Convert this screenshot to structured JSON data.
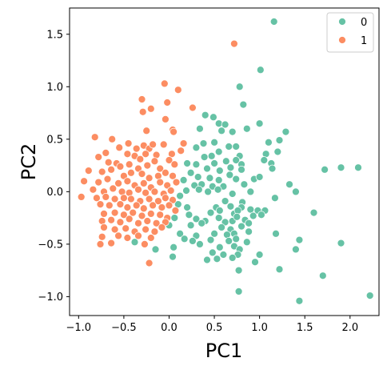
{
  "colors": {
    "series_0": "#66c2a5",
    "series_1": "#fc8d62"
  },
  "chart_data": {
    "type": "scatter",
    "title": "",
    "xlabel": "PC1",
    "ylabel": "PC2",
    "xlim": [
      -1.1,
      2.32
    ],
    "ylim": [
      -1.18,
      1.75
    ],
    "xticks": [
      -1.0,
      -0.5,
      0.0,
      0.5,
      1.0,
      1.5,
      2.0
    ],
    "yticks": [
      -1.0,
      -0.5,
      0.0,
      0.5,
      1.0,
      1.5
    ],
    "xtick_labels": [
      "−1.0",
      "−0.5",
      "0.0",
      "0.5",
      "1.0",
      "1.5",
      "2.0"
    ],
    "ytick_labels": [
      "−1.0",
      "−0.5",
      "0.0",
      "0.5",
      "1.0",
      "1.5"
    ],
    "grid": false,
    "legend": {
      "position": "top-right"
    },
    "series": [
      {
        "name": "0",
        "points": [
          [
            1.16,
            1.62
          ],
          [
            1.01,
            1.16
          ],
          [
            0.78,
            1.0
          ],
          [
            0.82,
            0.83
          ],
          [
            0.4,
            0.73
          ],
          [
            0.49,
            0.71
          ],
          [
            0.55,
            0.65
          ],
          [
            0.62,
            0.64
          ],
          [
            0.58,
            0.58
          ],
          [
            0.34,
            0.6
          ],
          [
            0.7,
            0.57
          ],
          [
            0.86,
            0.6
          ],
          [
            1.0,
            0.65
          ],
          [
            1.29,
            0.57
          ],
          [
            1.1,
            0.47
          ],
          [
            1.2,
            0.38
          ],
          [
            1.22,
            0.49
          ],
          [
            0.5,
            0.47
          ],
          [
            0.38,
            0.46
          ],
          [
            0.74,
            0.43
          ],
          [
            0.3,
            0.42
          ],
          [
            0.55,
            0.38
          ],
          [
            0.66,
            0.43
          ],
          [
            0.47,
            0.34
          ],
          [
            0.39,
            0.33
          ],
          [
            0.78,
            0.34
          ],
          [
            0.74,
            0.3
          ],
          [
            0.63,
            0.29
          ],
          [
            0.2,
            0.27
          ],
          [
            0.3,
            0.26
          ],
          [
            0.5,
            0.27
          ],
          [
            0.8,
            0.26
          ],
          [
            1.07,
            0.36
          ],
          [
            1.05,
            0.3
          ],
          [
            1.13,
            0.27
          ],
          [
            1.14,
            0.22
          ],
          [
            1.9,
            0.23
          ],
          [
            2.09,
            0.23
          ],
          [
            1.72,
            0.21
          ],
          [
            0.42,
            0.22
          ],
          [
            0.56,
            0.2
          ],
          [
            0.68,
            0.23
          ],
          [
            0.8,
            0.21
          ],
          [
            0.67,
            0.16
          ],
          [
            0.24,
            0.18
          ],
          [
            0.32,
            0.14
          ],
          [
            0.45,
            0.13
          ],
          [
            0.36,
            0.07
          ],
          [
            0.55,
            0.11
          ],
          [
            0.74,
            0.12
          ],
          [
            0.94,
            0.12
          ],
          [
            1.0,
            0.14
          ],
          [
            0.16,
            0.11
          ],
          [
            0.28,
            0.06
          ],
          [
            0.48,
            0.05
          ],
          [
            0.6,
            0.05
          ],
          [
            0.83,
            0.07
          ],
          [
            1.33,
            0.07
          ],
          [
            0.19,
            0.01
          ],
          [
            0.33,
            0.02
          ],
          [
            0.43,
            0.0
          ],
          [
            0.54,
            0.02
          ],
          [
            0.7,
            -0.02
          ],
          [
            0.9,
            0.0
          ],
          [
            1.4,
            0.0
          ],
          [
            0.12,
            -0.04
          ],
          [
            0.62,
            -0.09
          ],
          [
            0.81,
            -0.1
          ],
          [
            1.17,
            -0.06
          ],
          [
            0.1,
            -0.12
          ],
          [
            0.2,
            -0.15
          ],
          [
            0.52,
            -0.15
          ],
          [
            0.68,
            -0.14
          ],
          [
            0.8,
            -0.15
          ],
          [
            0.9,
            -0.17
          ],
          [
            0.98,
            -0.18
          ],
          [
            1.06,
            -0.18
          ],
          [
            0.22,
            -0.22
          ],
          [
            0.46,
            -0.2
          ],
          [
            0.56,
            -0.18
          ],
          [
            0.72,
            -0.21
          ],
          [
            0.76,
            -0.18
          ],
          [
            1.02,
            -0.22
          ],
          [
            1.6,
            -0.2
          ],
          [
            0.06,
            -0.25
          ],
          [
            0.3,
            -0.26
          ],
          [
            0.4,
            -0.28
          ],
          [
            0.55,
            -0.25
          ],
          [
            0.62,
            -0.29
          ],
          [
            0.7,
            -0.28
          ],
          [
            0.75,
            -0.24
          ],
          [
            0.84,
            -0.27
          ],
          [
            0.93,
            -0.23
          ],
          [
            0.88,
            -0.3
          ],
          [
            0.0,
            -0.32
          ],
          [
            0.24,
            -0.32
          ],
          [
            0.36,
            -0.3
          ],
          [
            0.58,
            -0.34
          ],
          [
            0.68,
            -0.36
          ],
          [
            0.8,
            -0.33
          ],
          [
            0.88,
            -0.38
          ],
          [
            0.12,
            -0.4
          ],
          [
            0.3,
            -0.42
          ],
          [
            0.5,
            -0.4
          ],
          [
            0.64,
            -0.41
          ],
          [
            0.72,
            -0.4
          ],
          [
            0.17,
            -0.45
          ],
          [
            0.26,
            -0.47
          ],
          [
            0.46,
            -0.46
          ],
          [
            0.66,
            -0.47
          ],
          [
            0.74,
            -0.45
          ],
          [
            0.86,
            -0.48
          ],
          [
            1.18,
            -0.4
          ],
          [
            1.44,
            -0.46
          ],
          [
            1.9,
            -0.49
          ],
          [
            -0.38,
            -0.48
          ],
          [
            -0.15,
            -0.55
          ],
          [
            0.05,
            -0.53
          ],
          [
            0.34,
            -0.5
          ],
          [
            0.56,
            -0.53
          ],
          [
            0.72,
            -0.52
          ],
          [
            0.78,
            -0.55
          ],
          [
            1.4,
            -0.55
          ],
          [
            0.48,
            -0.58
          ],
          [
            0.6,
            -0.6
          ],
          [
            0.76,
            -0.6
          ],
          [
            1.0,
            -0.6
          ],
          [
            0.04,
            -0.62
          ],
          [
            0.42,
            -0.65
          ],
          [
            0.53,
            -0.64
          ],
          [
            0.7,
            -0.63
          ],
          [
            0.95,
            -0.67
          ],
          [
            1.22,
            -0.74
          ],
          [
            0.77,
            -0.75
          ],
          [
            1.7,
            -0.8
          ],
          [
            0.77,
            -0.95
          ],
          [
            1.44,
            -1.04
          ],
          [
            2.22,
            -0.99
          ]
        ]
      },
      {
        "name": "1",
        "points": [
          [
            0.72,
            1.41
          ],
          [
            -0.05,
            1.03
          ],
          [
            0.1,
            0.97
          ],
          [
            -0.02,
            0.85
          ],
          [
            -0.3,
            0.88
          ],
          [
            -0.2,
            0.79
          ],
          [
            0.26,
            0.8
          ],
          [
            -0.29,
            0.76
          ],
          [
            -0.04,
            0.69
          ],
          [
            0.04,
            0.59
          ],
          [
            -0.82,
            0.52
          ],
          [
            -0.63,
            0.5
          ],
          [
            -0.25,
            0.58
          ],
          [
            0.05,
            0.57
          ],
          [
            -0.45,
            0.46
          ],
          [
            -0.55,
            0.42
          ],
          [
            -0.28,
            0.44
          ],
          [
            -0.36,
            0.41
          ],
          [
            -0.22,
            0.41
          ],
          [
            -0.18,
            0.45
          ],
          [
            -0.06,
            0.45
          ],
          [
            0.16,
            0.46
          ],
          [
            -0.7,
            0.37
          ],
          [
            -0.78,
            0.33
          ],
          [
            -0.46,
            0.36
          ],
          [
            -0.38,
            0.34
          ],
          [
            -0.32,
            0.31
          ],
          [
            -0.26,
            0.36
          ],
          [
            -0.14,
            0.35
          ],
          [
            0.03,
            0.36
          ],
          [
            0.13,
            0.39
          ],
          [
            -0.67,
            0.28
          ],
          [
            -0.58,
            0.27
          ],
          [
            -0.54,
            0.24
          ],
          [
            -0.44,
            0.26
          ],
          [
            -0.34,
            0.22
          ],
          [
            -0.24,
            0.25
          ],
          [
            -0.16,
            0.29
          ],
          [
            -0.1,
            0.22
          ],
          [
            0.0,
            0.3
          ],
          [
            0.06,
            0.26
          ],
          [
            -0.89,
            0.2
          ],
          [
            -0.74,
            0.19
          ],
          [
            -0.64,
            0.21
          ],
          [
            -0.5,
            0.15
          ],
          [
            -0.42,
            0.18
          ],
          [
            -0.3,
            0.17
          ],
          [
            -0.22,
            0.13
          ],
          [
            -0.12,
            0.15
          ],
          [
            -0.04,
            0.18
          ],
          [
            0.04,
            0.15
          ],
          [
            -0.94,
            0.1
          ],
          [
            -0.78,
            0.09
          ],
          [
            -0.68,
            0.12
          ],
          [
            -0.56,
            0.08
          ],
          [
            -0.46,
            0.1
          ],
          [
            -0.38,
            0.06
          ],
          [
            -0.28,
            0.08
          ],
          [
            -0.2,
            0.04
          ],
          [
            -0.1,
            0.09
          ],
          [
            -0.02,
            0.06
          ],
          [
            0.08,
            0.09
          ],
          [
            -0.84,
            0.02
          ],
          [
            -0.72,
            0.0
          ],
          [
            -0.62,
            0.03
          ],
          [
            -0.52,
            0.0
          ],
          [
            -0.44,
            -0.01
          ],
          [
            -0.34,
            0.02
          ],
          [
            -0.26,
            -0.01
          ],
          [
            -0.16,
            0.0
          ],
          [
            -0.06,
            -0.02
          ],
          [
            0.02,
            0.01
          ],
          [
            -0.97,
            -0.05
          ],
          [
            -0.8,
            -0.06
          ],
          [
            -0.7,
            -0.05
          ],
          [
            -0.6,
            -0.07
          ],
          [
            -0.5,
            -0.06
          ],
          [
            -0.42,
            -0.07
          ],
          [
            -0.32,
            -0.09
          ],
          [
            -0.22,
            -0.07
          ],
          [
            -0.12,
            -0.09
          ],
          [
            -0.04,
            -0.06
          ],
          [
            0.04,
            -0.08
          ],
          [
            -0.76,
            -0.12
          ],
          [
            -0.66,
            -0.13
          ],
          [
            -0.54,
            -0.12
          ],
          [
            -0.46,
            -0.15
          ],
          [
            -0.36,
            -0.13
          ],
          [
            -0.28,
            -0.16
          ],
          [
            -0.18,
            -0.13
          ],
          [
            -0.08,
            -0.15
          ],
          [
            0.0,
            -0.13
          ],
          [
            0.07,
            -0.18
          ],
          [
            -0.72,
            -0.21
          ],
          [
            -0.6,
            -0.2
          ],
          [
            -0.5,
            -0.22
          ],
          [
            -0.4,
            -0.2
          ],
          [
            -0.3,
            -0.23
          ],
          [
            -0.2,
            -0.21
          ],
          [
            -0.1,
            -0.22
          ],
          [
            -0.02,
            -0.25
          ],
          [
            -0.74,
            -0.28
          ],
          [
            -0.64,
            -0.27
          ],
          [
            -0.54,
            -0.29
          ],
          [
            -0.44,
            -0.26
          ],
          [
            -0.34,
            -0.3
          ],
          [
            -0.24,
            -0.28
          ],
          [
            -0.14,
            -0.3
          ],
          [
            -0.04,
            -0.29
          ],
          [
            -0.72,
            -0.34
          ],
          [
            -0.6,
            -0.36
          ],
          [
            -0.48,
            -0.35
          ],
          [
            -0.38,
            -0.38
          ],
          [
            -0.26,
            -0.36
          ],
          [
            -0.16,
            -0.38
          ],
          [
            -0.08,
            -0.34
          ],
          [
            -0.74,
            -0.43
          ],
          [
            -0.56,
            -0.42
          ],
          [
            -0.46,
            -0.44
          ],
          [
            -0.34,
            -0.42
          ],
          [
            -0.2,
            -0.44
          ],
          [
            -0.76,
            -0.5
          ],
          [
            -0.64,
            -0.49
          ],
          [
            -0.27,
            -0.5
          ],
          [
            -0.22,
            -0.68
          ]
        ]
      }
    ]
  }
}
